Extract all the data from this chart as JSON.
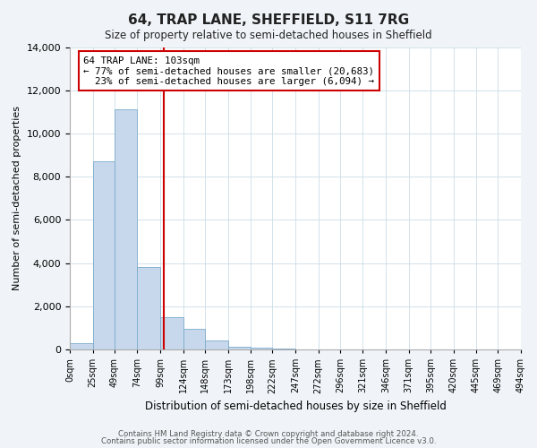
{
  "title": "64, TRAP LANE, SHEFFIELD, S11 7RG",
  "subtitle": "Size of property relative to semi-detached houses in Sheffield",
  "xlabel": "Distribution of semi-detached houses by size in Sheffield",
  "ylabel": "Number of semi-detached properties",
  "bar_color": "#c8d8ec",
  "bar_edge_color": "#7aaacb",
  "property_value": 103,
  "property_line_color": "#cc0000",
  "annotation_line1": "64 TRAP LANE: 103sqm",
  "annotation_line2": "← 77% of semi-detached houses are smaller (20,683)",
  "annotation_line3": "  23% of semi-detached houses are larger (6,094) →",
  "annotation_box_color": "#cc0000",
  "bin_edges": [
    0,
    25,
    49,
    74,
    99,
    124,
    148,
    173,
    198,
    222,
    247,
    272,
    296,
    321,
    346,
    371,
    395,
    420,
    445,
    469,
    494
  ],
  "bin_counts": [
    300,
    8700,
    11100,
    3800,
    1500,
    950,
    400,
    130,
    100,
    55,
    20,
    10,
    5,
    0,
    0,
    0,
    0,
    0,
    0,
    0
  ],
  "ylim": [
    0,
    14000
  ],
  "yticks": [
    0,
    2000,
    4000,
    6000,
    8000,
    10000,
    12000,
    14000
  ],
  "tick_labels": [
    "0sqm",
    "25sqm",
    "49sqm",
    "74sqm",
    "99sqm",
    "124sqm",
    "148sqm",
    "173sqm",
    "198sqm",
    "222sqm",
    "247sqm",
    "272sqm",
    "296sqm",
    "321sqm",
    "346sqm",
    "371sqm",
    "395sqm",
    "420sqm",
    "445sqm",
    "469sqm",
    "494sqm"
  ],
  "footnote1": "Contains HM Land Registry data © Crown copyright and database right 2024.",
  "footnote2": "Contains public sector information licensed under the Open Government Licence v3.0.",
  "background_color": "#f0f4f8",
  "plot_bg_color": "#ffffff",
  "grid_color": "#ccdde8"
}
